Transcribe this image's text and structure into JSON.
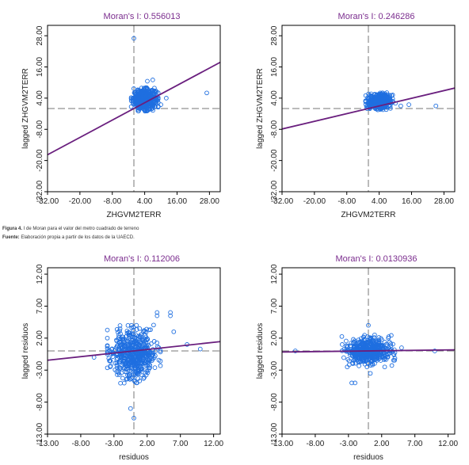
{
  "caption": {
    "figure_label": "Figura 4.",
    "figure_text": " I de Moran para el valor del metro cuadrado de terreno",
    "source_label": "Fuente:",
    "source_text": " Elaboración propia a partir de los datos de la UAECD."
  },
  "colors": {
    "points": "#1f6fe0",
    "regression": "#6a1f7e",
    "reference": "#777777",
    "frame": "#000000",
    "title": "#7b2d8e"
  },
  "chart_data": [
    {
      "type": "scatter",
      "title": "Moran's I: 0.556013",
      "xlabel": "ZHGVM2TERR",
      "ylabel": "lagged ZHGVM2TERR",
      "xlim": [
        -32,
        32
      ],
      "ylim": [
        -32,
        32
      ],
      "xticks": [
        "-32.00",
        "-20.00",
        "-8.00",
        "4.00",
        "16.00",
        "28.00"
      ],
      "yticks": [
        "-32.00",
        "-20.00",
        "-8.00",
        "4.00",
        "16.00",
        "28.00"
      ],
      "slope": 0.556013,
      "reference_lines": {
        "x": 0,
        "y": 0
      },
      "cloud": {
        "x_range": [
          -1,
          9
        ],
        "y_range": [
          -1,
          8
        ]
      },
      "outliers": [
        [
          0,
          27
        ],
        [
          27,
          6
        ],
        [
          10,
          1.5
        ],
        [
          12,
          4
        ],
        [
          5,
          10.5
        ],
        [
          7,
          11
        ]
      ],
      "grid": false,
      "legend": "none"
    },
    {
      "type": "scatter",
      "title": "Moran's I: 0.246286",
      "xlabel": "ZHGVM2TERR",
      "ylabel": "lagged ZHGVM2TERR",
      "xlim": [
        -32,
        32
      ],
      "ylim": [
        -32,
        32
      ],
      "xticks": [
        "-32.00",
        "-20.00",
        "-8.00",
        "4.00",
        "16.00",
        "28.00"
      ],
      "yticks": [
        "-32.00",
        "-20.00",
        "-8.00",
        "4.00",
        "16.00",
        "28.00"
      ],
      "slope": 0.246286,
      "reference_lines": {
        "x": 0,
        "y": 0
      },
      "cloud": {
        "x_range": [
          -1,
          9
        ],
        "y_range": [
          -0.5,
          6
        ]
      },
      "outliers": [
        [
          25,
          1
        ],
        [
          15,
          1.5
        ],
        [
          10,
          2
        ],
        [
          12,
          1
        ]
      ],
      "grid": false,
      "legend": "none"
    },
    {
      "type": "scatter",
      "title": "Moran's I: 0.112006",
      "xlabel": "residuos",
      "ylabel": "lagged residuos",
      "xlim": [
        -13,
        13
      ],
      "ylim": [
        -13,
        13
      ],
      "xticks": [
        "-13.00",
        "-8.00",
        "-3.00",
        "2.00",
        "7.00",
        "12.00"
      ],
      "yticks": [
        "-13.00",
        "-8.00",
        "-3.00",
        "2.00",
        "7.00",
        "12.00"
      ],
      "slope": 0.112006,
      "reference_lines": {
        "x": 0,
        "y": 0
      },
      "cloud": {
        "x_range": [
          -4,
          4
        ],
        "y_range": [
          -5,
          4
        ]
      },
      "outliers": [
        [
          5.5,
          6
        ],
        [
          5.5,
          5.5
        ],
        [
          3.5,
          5.5
        ],
        [
          3.5,
          6
        ],
        [
          0,
          -10.5
        ],
        [
          -0.5,
          -9
        ],
        [
          10,
          0.3
        ],
        [
          -6,
          -1
        ],
        [
          8,
          1
        ],
        [
          6,
          3
        ]
      ],
      "grid": false,
      "legend": "none"
    },
    {
      "type": "scatter",
      "title": "Moran's I: 0.0130936",
      "xlabel": "residuos",
      "ylabel": "lagged residuos",
      "xlim": [
        -13,
        13
      ],
      "ylim": [
        -13,
        13
      ],
      "xticks": [
        "-13.00",
        "-8.00",
        "-3.00",
        "2.00",
        "7.00",
        "12.00"
      ],
      "yticks": [
        "-13.00",
        "-8.00",
        "-3.00",
        "2.00",
        "7.00",
        "12.00"
      ],
      "slope": 0.0130936,
      "reference_lines": {
        "x": 0,
        "y": 0
      },
      "cloud": {
        "x_range": [
          -4,
          4
        ],
        "y_range": [
          -2.5,
          2.5
        ]
      },
      "outliers": [
        [
          -2,
          -5
        ],
        [
          -2.5,
          -5
        ],
        [
          0,
          4
        ],
        [
          0.3,
          -3.5
        ],
        [
          10,
          0
        ],
        [
          -11,
          0
        ],
        [
          5,
          0.5
        ],
        [
          3,
          2
        ]
      ],
      "grid": false,
      "legend": "none"
    }
  ]
}
